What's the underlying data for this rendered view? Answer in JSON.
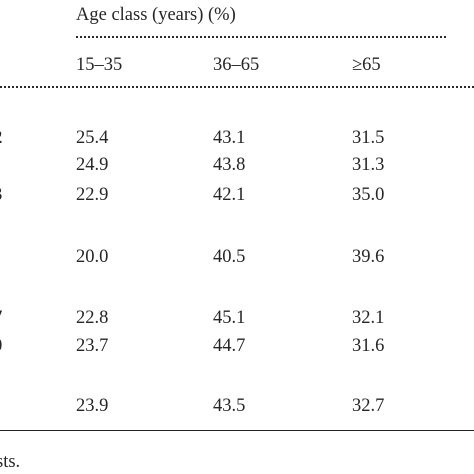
{
  "header": {
    "group_title": "Age class (years) (%)",
    "columns": [
      "15–35",
      "36–65",
      "≥65"
    ]
  },
  "rows": [
    {
      "edge": "2",
      "values": [
        "25.4",
        "43.1",
        "31.5"
      ]
    },
    {
      "edge": ".",
      "values": [
        "24.9",
        "43.8",
        "31.3"
      ]
    },
    {
      "edge": "3",
      "values": [
        "22.9",
        "42.1",
        "35.0"
      ]
    },
    {
      "edge": "-",
      "values": [
        "20.0",
        "40.5",
        "39.6"
      ]
    },
    {
      "edge": "7",
      "values": [
        "22.8",
        "45.1",
        "32.1"
      ]
    },
    {
      "edge": "0",
      "values": [
        "23.7",
        "44.7",
        "31.6"
      ]
    },
    {
      "edge": ".",
      "values": [
        "23.9",
        "43.5",
        "32.7"
      ]
    }
  ],
  "footnote": "sts."
}
